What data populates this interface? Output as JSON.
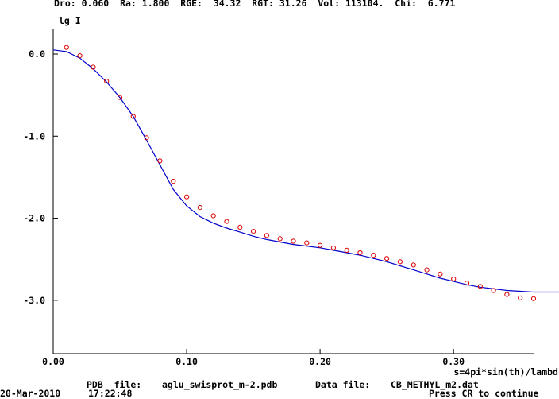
{
  "header": {
    "status_line": "Dro: 0.060  Ra: 1.800  RGE:  34.32  RGT: 31.26  Vol: 113104.  Chi:  6.771"
  },
  "footer": {
    "pdb_label": "PDB  file:",
    "pdb_value": "aglu_swisprot_m-2.pdb",
    "data_label": "Data file:",
    "data_value": "CB_METHYL_m2.dat",
    "date": "20-Mar-2010",
    "time": "17:22:48",
    "prompt": "Press CR to continue"
  },
  "colors": {
    "fit": "#0000cc",
    "data": "#dd0000",
    "axis": "#000000"
  },
  "chart_data": {
    "type": "scatter",
    "ylabel": "lg I",
    "xlabel": "s=4pi*sin(th)/lambd",
    "xlim": [
      0.0,
      0.36
    ],
    "ylim": [
      -3.65,
      0.3
    ],
    "x_ticks": [
      {
        "v": 0.0,
        "label": "0.00"
      },
      {
        "v": 0.1,
        "label": "0.10"
      },
      {
        "v": 0.2,
        "label": "0.20"
      },
      {
        "v": 0.3,
        "label": "0.30"
      }
    ],
    "y_ticks": [
      {
        "v": 0.0,
        "label": "0.0"
      },
      {
        "v": -1.0,
        "label": "-1.0"
      },
      {
        "v": -2.0,
        "label": "-2.0"
      },
      {
        "v": -3.0,
        "label": "-3.0"
      }
    ],
    "grid": false,
    "series": [
      {
        "kind": "line",
        "x": [
          0.0,
          0.01,
          0.02,
          0.03,
          0.04,
          0.05,
          0.06,
          0.07,
          0.08,
          0.09,
          0.1,
          0.11,
          0.12,
          0.13,
          0.14,
          0.15,
          0.16,
          0.17,
          0.18,
          0.19,
          0.2,
          0.21,
          0.22,
          0.23,
          0.24,
          0.25,
          0.26,
          0.27,
          0.28,
          0.29,
          0.3,
          0.31,
          0.32,
          0.33,
          0.34,
          0.35,
          0.36
        ],
        "y": [
          0.05,
          0.03,
          -0.05,
          -0.18,
          -0.34,
          -0.53,
          -0.76,
          -1.05,
          -1.35,
          -1.65,
          -1.85,
          -1.98,
          -2.06,
          -2.12,
          -2.17,
          -2.22,
          -2.26,
          -2.29,
          -2.32,
          -2.34,
          -2.36,
          -2.39,
          -2.42,
          -2.45,
          -2.49,
          -2.53,
          -2.58,
          -2.63,
          -2.68,
          -2.73,
          -2.77,
          -2.81,
          -2.84,
          -2.86,
          -2.88,
          -2.89,
          -2.9
        ]
      },
      {
        "kind": "points",
        "x": [
          0.01,
          0.02,
          0.03,
          0.04,
          0.05,
          0.06,
          0.07,
          0.08,
          0.09,
          0.1,
          0.11,
          0.12,
          0.13,
          0.14,
          0.15,
          0.16,
          0.17,
          0.18,
          0.19,
          0.2,
          0.21,
          0.22,
          0.23,
          0.24,
          0.25,
          0.26,
          0.27,
          0.28,
          0.29,
          0.3,
          0.31,
          0.32,
          0.33,
          0.34,
          0.35,
          0.36
        ],
        "y": [
          0.08,
          -0.02,
          -0.16,
          -0.33,
          -0.53,
          -0.76,
          -1.02,
          -1.3,
          -1.55,
          -1.74,
          -1.87,
          -1.97,
          -2.04,
          -2.11,
          -2.16,
          -2.21,
          -2.25,
          -2.28,
          -2.3,
          -2.33,
          -2.36,
          -2.39,
          -2.42,
          -2.45,
          -2.49,
          -2.53,
          -2.57,
          -2.63,
          -2.68,
          -2.74,
          -2.79,
          -2.83,
          -2.88,
          -2.93,
          -2.97,
          -2.98
        ]
      }
    ]
  }
}
